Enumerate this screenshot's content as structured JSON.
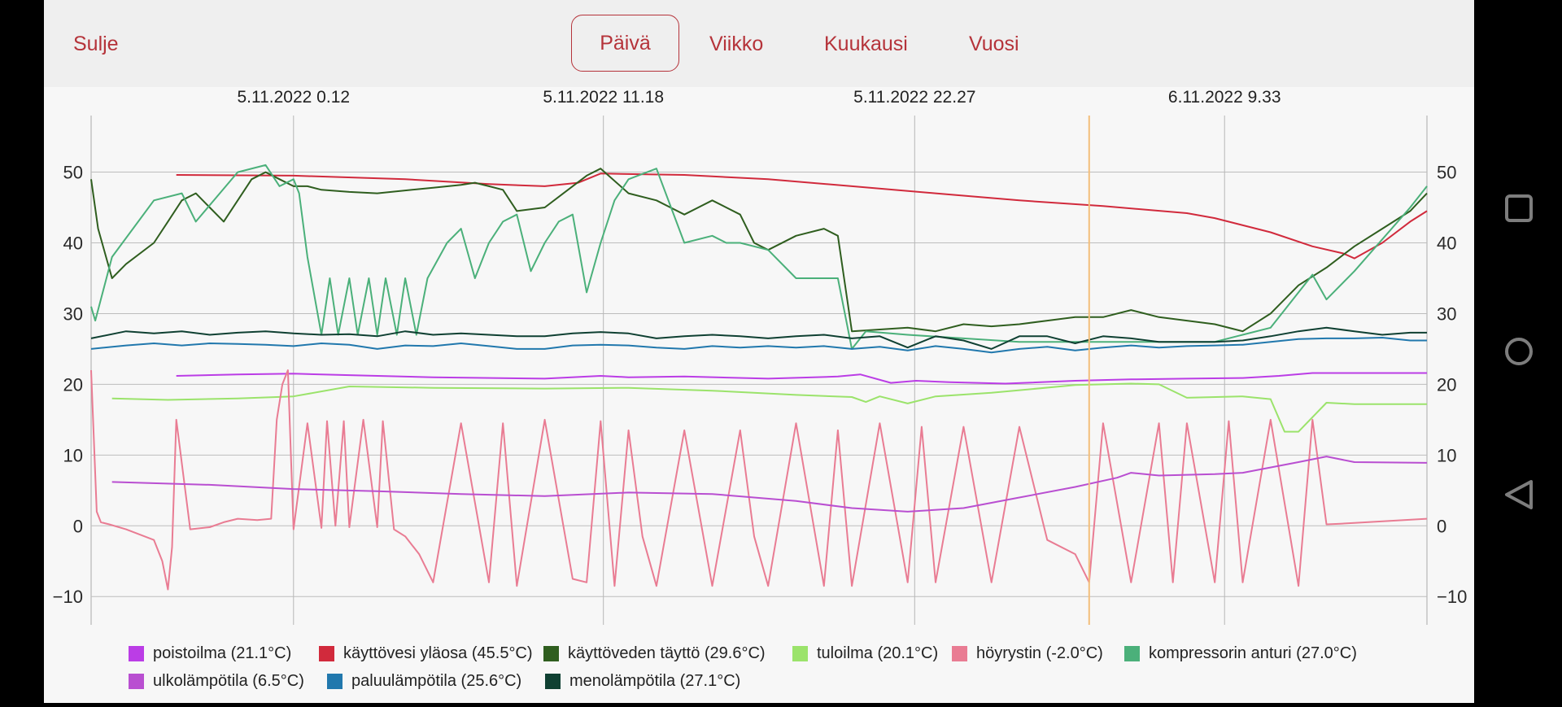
{
  "nav": {
    "close_label": "Sulje"
  },
  "tabs": [
    {
      "label": "Päivä",
      "active": true
    },
    {
      "label": "Viikko",
      "active": false
    },
    {
      "label": "Kuukausi",
      "active": false
    },
    {
      "label": "Vuosi",
      "active": false
    }
  ],
  "system_nav": [
    "square-icon",
    "circle-icon",
    "back-triangle-icon"
  ],
  "chart_data": {
    "type": "line",
    "x_ticks": [
      "5.11.2022 0.12",
      "5.11.2022 11.18",
      "5.11.2022 22.27",
      "6.11.2022 9.33"
    ],
    "x_tick_hours": [
      0,
      11.1,
      22.25,
      33.35
    ],
    "x_range_hours": [
      -7.25,
      40.6
    ],
    "cursor_hour": 28.5,
    "cursor_color": "#f3be7a",
    "ylim": [
      -14,
      58
    ],
    "y_ticks": [
      50,
      40,
      30,
      20,
      10,
      0,
      -10
    ],
    "y_tick_labels": [
      "50",
      "40",
      "30",
      "20",
      "10",
      "0",
      "−10"
    ],
    "grid": true,
    "legend_position": "bottom",
    "series": [
      {
        "name": "poistoilma (21.1°C)",
        "color": "#bb3de6",
        "x": [
          -4.2,
          -2,
          0,
          2,
          5,
          9,
          11,
          12,
          14,
          17,
          19.5,
          20.3,
          21.4,
          22.3,
          23.5,
          25.5,
          28,
          30,
          32,
          34,
          35.3,
          36.5,
          38,
          40.6
        ],
        "y": [
          21.2,
          21.4,
          21.5,
          21.3,
          21.0,
          20.8,
          21.2,
          21.0,
          21.1,
          20.8,
          21.1,
          21.4,
          20.2,
          20.5,
          20.3,
          20.1,
          20.5,
          20.7,
          20.8,
          20.9,
          21.2,
          21.6,
          21.6,
          21.6
        ]
      },
      {
        "name": "käyttövesi yläosa (45.5°C)",
        "color": "#d12a3c",
        "x": [
          -4.2,
          0,
          4,
          7,
          9,
          10.2,
          11,
          14,
          17,
          20,
          23,
          26,
          29,
          32,
          33,
          35,
          36.5,
          37.6,
          38,
          39,
          40,
          40.6
        ],
        "y": [
          49.6,
          49.5,
          49.0,
          48.3,
          48.0,
          48.5,
          49.8,
          49.6,
          49.0,
          48.0,
          47.0,
          46.0,
          45.2,
          44.2,
          43.5,
          41.5,
          39.5,
          38.5,
          37.8,
          40,
          43,
          44.5
        ]
      },
      {
        "name": "käyttöveden täyttö (29.6°C)",
        "color": "#2f5e1f",
        "x": [
          -7.25,
          -7,
          -6.5,
          -6,
          -5,
          -4.5,
          -4,
          -3.5,
          -3,
          -2.5,
          -2,
          -1.5,
          -1,
          -0.5,
          0,
          0.5,
          1,
          2,
          3,
          5,
          6,
          6.5,
          7,
          7.5,
          8,
          9,
          10,
          10.5,
          11,
          12,
          13,
          14,
          15,
          16,
          16.5,
          17,
          18,
          19,
          19.5,
          20,
          22,
          23,
          24,
          25,
          26,
          27,
          28,
          29,
          30,
          31,
          32,
          33,
          34,
          35,
          36,
          37,
          38,
          39,
          40,
          40.6
        ],
        "y": [
          49,
          42,
          35,
          37,
          40,
          43,
          46,
          47,
          45,
          43,
          46,
          49,
          50,
          49,
          48,
          48,
          47.5,
          47.2,
          47,
          47.8,
          48.2,
          48.5,
          48,
          47.5,
          44.5,
          45,
          48,
          49.5,
          50.5,
          47,
          46,
          44,
          46,
          44,
          40,
          39,
          41,
          42,
          41,
          27.5,
          28,
          27.5,
          28.5,
          28.2,
          28.5,
          29,
          29.5,
          29.5,
          30.5,
          29.5,
          29,
          28.5,
          27.5,
          30,
          34,
          36.5,
          39.5,
          42,
          44.5,
          47
        ]
      },
      {
        "name": "tuloilma (20.1°C)",
        "color": "#9be36b",
        "x": [
          -6.5,
          -4.5,
          -2,
          0,
          2,
          5,
          9,
          12,
          15,
          18,
          20,
          20.5,
          21,
          22,
          23,
          25,
          28,
          30,
          31,
          32,
          34,
          35,
          35.5,
          36,
          37,
          38,
          40.6
        ],
        "y": [
          18.0,
          17.8,
          18.0,
          18.3,
          19.7,
          19.5,
          19.4,
          19.5,
          19.1,
          18.5,
          18.2,
          17.5,
          18.3,
          17.3,
          18.3,
          18.8,
          19.9,
          20.1,
          20.0,
          18.1,
          18.3,
          17.9,
          13.3,
          13.3,
          17.4,
          17.2,
          17.2
        ]
      },
      {
        "name": "höyrystin (-2.0°C)",
        "color": "#e97c93",
        "x": [
          -7.25,
          -7.05,
          -6.9,
          -6.6,
          -6,
          -5,
          -4.7,
          -4.5,
          -4.35,
          -4.2,
          -3.7,
          -3,
          -2.5,
          -2,
          -1.3,
          -0.8,
          -0.6,
          -0.4,
          -0.2,
          0,
          0.5,
          1,
          1.2,
          1.5,
          1.8,
          2,
          2.5,
          3,
          3.2,
          3.6,
          4,
          4.5,
          5,
          6,
          7,
          7.5,
          8,
          9,
          10,
          10.5,
          11,
          11.5,
          12,
          12.5,
          13,
          14,
          15,
          16,
          16.5,
          17,
          18,
          19,
          19.5,
          20,
          21,
          22,
          22.5,
          23,
          24,
          25,
          26,
          27,
          28,
          28.5,
          29,
          30,
          31,
          31.5,
          32,
          33,
          33.5,
          34,
          35,
          36,
          36.5,
          37,
          37.5,
          38,
          40.6
        ],
        "y": [
          22,
          2,
          0.5,
          0.2,
          -0.5,
          -2,
          -5,
          -9,
          -3,
          15,
          -0.5,
          -0.2,
          0.5,
          1,
          0.8,
          1,
          15,
          20,
          22,
          -0.5,
          14.5,
          -0.3,
          14.8,
          0,
          14.8,
          -0.2,
          15,
          -0.2,
          14.8,
          -0.5,
          -1.5,
          -4,
          -8,
          14.5,
          -8,
          14.5,
          -8.5,
          15,
          -7.5,
          -8,
          14.8,
          -8.5,
          13.5,
          -1.5,
          -8.5,
          13.5,
          -8.5,
          13.5,
          -1.5,
          -8.5,
          14.5,
          -8.5,
          13.5,
          -8.5,
          14.5,
          -8,
          14,
          -8,
          14,
          -8,
          14,
          -2,
          -4,
          -8,
          14.5,
          -8,
          14.5,
          -8,
          14.5,
          -8,
          14.8,
          -8,
          15,
          -8.5,
          15,
          0.2,
          0.3,
          0.4,
          1
        ]
      },
      {
        "name": "kompressorin anturi (27.0°C)",
        "color": "#4bb07a",
        "x": [
          -7.25,
          -7.1,
          -6.5,
          -5,
          -4,
          -3.5,
          -2,
          -1,
          -0.5,
          0,
          0.2,
          0.5,
          1,
          1.3,
          1.6,
          2,
          2.3,
          2.7,
          3,
          3.3,
          3.7,
          4,
          4.4,
          4.8,
          5.5,
          6,
          6.5,
          7,
          7.5,
          8,
          8.5,
          9,
          9.5,
          10,
          10.5,
          11,
          11.5,
          12,
          13,
          14,
          15,
          15.5,
          16,
          17,
          18,
          19,
          19.5,
          20,
          20.5,
          22,
          24,
          26,
          28,
          30,
          32,
          33,
          34,
          35,
          36,
          36.5,
          37,
          38,
          40,
          40.6
        ],
        "y": [
          31,
          29,
          38,
          46,
          47,
          43,
          50,
          51,
          48,
          49,
          47,
          38,
          27,
          35,
          27,
          35,
          27,
          35,
          27,
          35,
          27,
          35,
          27,
          35,
          40,
          42,
          35,
          40,
          43,
          44,
          36,
          40,
          43,
          44,
          33,
          40,
          46,
          49,
          50.5,
          40,
          41,
          40,
          40,
          39,
          35,
          35,
          35,
          25,
          27.5,
          27,
          26.5,
          26,
          26,
          26,
          26,
          26,
          27,
          28,
          33,
          35.5,
          32,
          36,
          45,
          48
        ]
      },
      {
        "name": "ulkolämpötila (6.5°C)",
        "color": "#b94fd1",
        "x": [
          -6.5,
          -3,
          0,
          3,
          6,
          9,
          12,
          15,
          18,
          20,
          22,
          24,
          26,
          28,
          29.5,
          30,
          31,
          33,
          34,
          36,
          37,
          38,
          40.6
        ],
        "y": [
          6.2,
          5.8,
          5.2,
          4.9,
          4.5,
          4.2,
          4.7,
          4.5,
          3.5,
          2.5,
          2.0,
          2.5,
          4.0,
          5.5,
          6.8,
          7.5,
          7.1,
          7.3,
          7.5,
          9,
          9.8,
          9,
          8.9
        ]
      },
      {
        "name": "paluulämpötila (25.6°C)",
        "color": "#2178ad",
        "x": [
          -7.25,
          -6,
          -5,
          -4,
          -3,
          -2,
          -1,
          0,
          1,
          2,
          3,
          4,
          5,
          6,
          7,
          8,
          9,
          10,
          11,
          12,
          13,
          14,
          15,
          16,
          17,
          18,
          19,
          20,
          21,
          22,
          23,
          24,
          25,
          26,
          27,
          28,
          29,
          30,
          31,
          32,
          33,
          34,
          35,
          36,
          37,
          38,
          39,
          40,
          40.6
        ],
        "y": [
          25,
          25.5,
          25.8,
          25.5,
          25.8,
          25.7,
          25.6,
          25.4,
          25.8,
          25.6,
          25,
          25.5,
          25.4,
          25.8,
          25.4,
          25,
          25,
          25.5,
          25.6,
          25.5,
          25.2,
          25,
          25.4,
          25.2,
          25.4,
          25.2,
          25.4,
          25,
          25.3,
          24.8,
          25.4,
          25,
          24.5,
          25,
          25.3,
          24.8,
          25.2,
          25.5,
          25.2,
          25.4,
          25.5,
          25.6,
          26,
          26.4,
          26.5,
          26.5,
          26.6,
          26.2,
          26.2
        ]
      },
      {
        "name": "menolämpötila (27.1°C)",
        "color": "#0f4032",
        "x": [
          -7.25,
          -6,
          -5,
          -4,
          -3,
          -2,
          -1,
          0,
          1,
          2,
          3,
          4,
          5,
          6,
          7,
          8,
          9,
          10,
          11,
          12,
          13,
          14,
          15,
          16,
          17,
          18,
          19,
          20,
          21,
          22,
          23,
          24,
          25,
          26,
          27,
          28,
          29,
          30,
          31,
          32,
          33,
          34,
          35,
          36,
          37,
          38,
          39,
          40,
          40.6
        ],
        "y": [
          26.5,
          27.5,
          27.2,
          27.5,
          27,
          27.3,
          27.5,
          27.2,
          27,
          27.1,
          26.8,
          27.5,
          27,
          27.2,
          27,
          26.8,
          26.8,
          27.2,
          27.4,
          27.2,
          26.5,
          26.8,
          27,
          26.8,
          26.5,
          26.8,
          27,
          26.5,
          26.8,
          25.2,
          26.8,
          26.2,
          25,
          26.8,
          26.8,
          25.8,
          26.8,
          26.5,
          26,
          26,
          26,
          26.2,
          26.8,
          27.5,
          28,
          27.5,
          27,
          27.3,
          27.3
        ]
      }
    ]
  }
}
